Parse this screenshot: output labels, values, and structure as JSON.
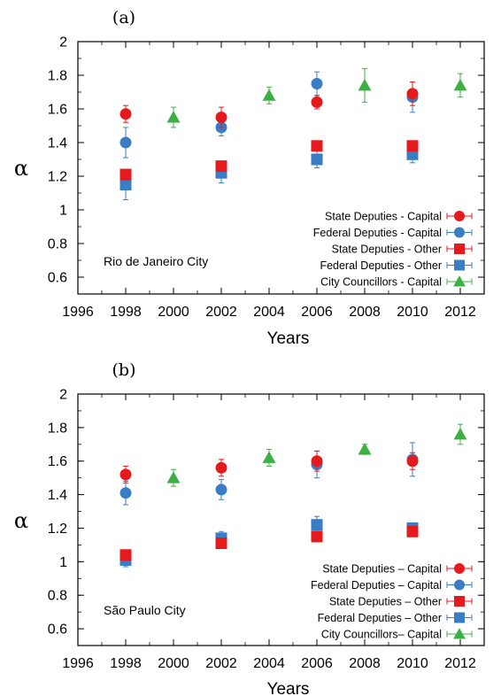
{
  "colors": {
    "state_capital": "#e41a1c",
    "federal_capital": "#3a7dc4",
    "state_other": "#e41a1c",
    "federal_other": "#3a7dc4",
    "councillors": "#3cb043"
  },
  "chart_data": [
    {
      "type": "scatter",
      "panel_label": "(a)",
      "annotation": "Rio de Janeiro City",
      "xlabel": "Years",
      "ylabel": "α",
      "xlim": [
        1996,
        2013
      ],
      "ylim": [
        0.5,
        2
      ],
      "xticks": [
        "1996",
        "1998",
        "2000",
        "2002",
        "2004",
        "2006",
        "2008",
        "2010",
        "2012"
      ],
      "yticks": [
        "0.6",
        "0.8",
        "1",
        "1.2",
        "1.4",
        "1.6",
        "1.8",
        "2"
      ],
      "legend_position": "bottom-right",
      "series": [
        {
          "name": "State Deputies - Capital",
          "marker": "circle",
          "color_key": "state_capital",
          "x": [
            1998,
            2002,
            2006,
            2010
          ],
          "y": [
            1.57,
            1.55,
            1.64,
            1.69
          ],
          "err": [
            0.05,
            0.06,
            0.04,
            0.07
          ]
        },
        {
          "name": "Federal Deputies - Capital",
          "marker": "circle",
          "color_key": "federal_capital",
          "x": [
            1998,
            2002,
            2006,
            2010
          ],
          "y": [
            1.4,
            1.49,
            1.75,
            1.67
          ],
          "err": [
            0.09,
            0.05,
            0.07,
            0.09
          ]
        },
        {
          "name": "State Deputies - Other",
          "marker": "square",
          "color_key": "state_other",
          "x": [
            1998,
            2002,
            2006,
            2010
          ],
          "y": [
            1.21,
            1.26,
            1.38,
            1.38
          ],
          "err": [
            0.02,
            0.02,
            0.02,
            0.02
          ]
        },
        {
          "name": "Federal Deputies - Other",
          "marker": "square",
          "color_key": "federal_other",
          "x": [
            1998,
            2002,
            2006,
            2010
          ],
          "y": [
            1.15,
            1.22,
            1.3,
            1.33
          ],
          "err": [
            0.09,
            0.06,
            0.05,
            0.05
          ]
        },
        {
          "name": "City Councillors - Capital",
          "marker": "triangle",
          "color_key": "councillors",
          "x": [
            2000,
            2004,
            2008,
            2012
          ],
          "y": [
            1.55,
            1.68,
            1.74,
            1.74
          ],
          "err": [
            0.06,
            0.05,
            0.1,
            0.07
          ]
        }
      ]
    },
    {
      "type": "scatter",
      "panel_label": "(b)",
      "annotation": "São Paulo City",
      "xlabel": "Years",
      "ylabel": "α",
      "xlim": [
        1996,
        2013
      ],
      "ylim": [
        0.5,
        2
      ],
      "xticks": [
        "1996",
        "1998",
        "2000",
        "2002",
        "2004",
        "2006",
        "2008",
        "2010",
        "2012"
      ],
      "yticks": [
        "0.6",
        "0.8",
        "1",
        "1.2",
        "1.4",
        "1.6",
        "1.8",
        "2"
      ],
      "legend_position": "bottom-right",
      "series": [
        {
          "name": "State Deputies – Capital",
          "marker": "circle",
          "color_key": "state_capital",
          "x": [
            1998,
            2002,
            2006,
            2010
          ],
          "y": [
            1.52,
            1.56,
            1.6,
            1.6
          ],
          "err": [
            0.05,
            0.05,
            0.06,
            0.05
          ]
        },
        {
          "name": "Federal Deputies – Capital",
          "marker": "circle",
          "color_key": "federal_capital",
          "x": [
            1998,
            2002,
            2006,
            2010
          ],
          "y": [
            1.41,
            1.43,
            1.58,
            1.61
          ],
          "err": [
            0.07,
            0.06,
            0.08,
            0.1
          ]
        },
        {
          "name": "State Deputies – Other",
          "marker": "square",
          "color_key": "state_other",
          "x": [
            1998,
            2002,
            2006,
            2010
          ],
          "y": [
            1.04,
            1.11,
            1.15,
            1.18
          ],
          "err": [
            0.02,
            0.02,
            0.02,
            0.02
          ]
        },
        {
          "name": "Federal Deputies – Other",
          "marker": "square",
          "color_key": "federal_other",
          "x": [
            1998,
            2002,
            2006,
            2010
          ],
          "y": [
            1.01,
            1.14,
            1.22,
            1.2
          ],
          "err": [
            0.04,
            0.04,
            0.05,
            0.03
          ]
        },
        {
          "name": "City Councillors– Capital",
          "marker": "triangle",
          "color_key": "councillors",
          "x": [
            2000,
            2004,
            2008,
            2012
          ],
          "y": [
            1.5,
            1.62,
            1.67,
            1.76
          ],
          "err": [
            0.05,
            0.05,
            0.03,
            0.06
          ]
        }
      ]
    }
  ]
}
